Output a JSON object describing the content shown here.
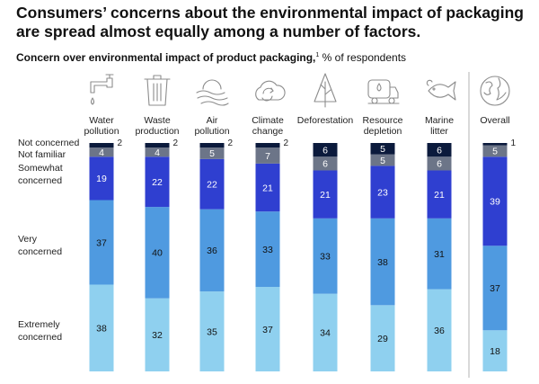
{
  "headline": "Consumers’ concerns about the environmental impact of packaging are spread almost equally among a number of factors.",
  "subtitle": {
    "bold": "Concern over environmental impact of product packaging,",
    "footnote": "1",
    "rest": " % of respondents"
  },
  "colors": {
    "not_concerned": "#0b1a3c",
    "not_familiar": "#6c7588",
    "somewhat_concerned": "#2f3fd0",
    "very_concerned": "#4f9ae0",
    "extremely_concerned": "#8fd0ef",
    "divider": "#b3b3b3"
  },
  "chart_data": {
    "type": "bar",
    "stacked": true,
    "orientation": "vertical",
    "unit": "% of respondents",
    "categories": [
      {
        "label": [
          "Water",
          "pollution"
        ],
        "icon": "water-tap-icon"
      },
      {
        "label": [
          "Waste",
          "production"
        ],
        "icon": "trash-can-icon"
      },
      {
        "label": [
          "Air",
          "pollution"
        ],
        "icon": "sun-clouds-icon"
      },
      {
        "label": [
          "Climate",
          "change"
        ],
        "icon": "cloud-cycle-icon"
      },
      {
        "label": [
          "Deforestation"
        ],
        "icon": "tree-icon"
      },
      {
        "label": [
          "Resource",
          "depletion"
        ],
        "icon": "oil-truck-icon"
      },
      {
        "label": [
          "Marine",
          "litter"
        ],
        "icon": "fish-icon"
      },
      {
        "label": [
          "Overall"
        ],
        "icon": "globe-icon"
      }
    ],
    "series": [
      {
        "key": "extremely_concerned",
        "name": [
          "Extremely",
          "concerned"
        ],
        "values": [
          38,
          32,
          35,
          37,
          34,
          29,
          36,
          18
        ]
      },
      {
        "key": "very_concerned",
        "name": [
          "Very",
          "concerned"
        ],
        "values": [
          37,
          40,
          36,
          33,
          33,
          38,
          31,
          37
        ]
      },
      {
        "key": "somewhat_concerned",
        "name": [
          "Somewhat",
          "concerned"
        ],
        "values": [
          19,
          22,
          22,
          21,
          21,
          23,
          21,
          39
        ]
      },
      {
        "key": "not_familiar",
        "name": [
          "Not familiar"
        ],
        "values": [
          4,
          4,
          5,
          7,
          6,
          5,
          6,
          5
        ]
      },
      {
        "key": "not_concerned",
        "name": [
          "Not concerned"
        ],
        "values": [
          2,
          2,
          2,
          2,
          6,
          5,
          6,
          1
        ]
      }
    ]
  }
}
